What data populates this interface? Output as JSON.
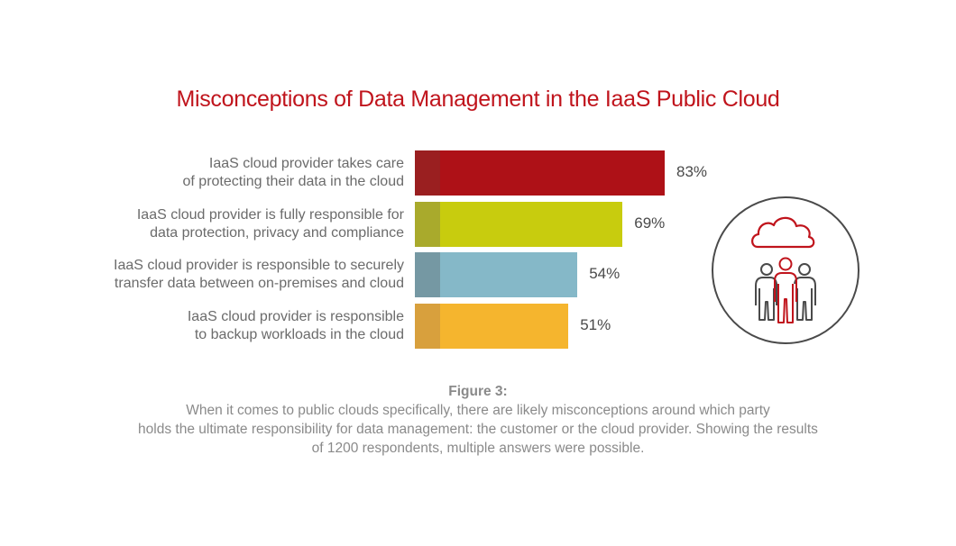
{
  "title": "Misconceptions of Data Management in the IaaS Public Cloud",
  "colors": {
    "title": "#c0141c",
    "bars": [
      "#ae1117",
      "#c8cc0e",
      "#85b8c8",
      "#f5b52e"
    ],
    "bar_accents": [
      "#9a1f20",
      "#a9aa2c",
      "#7598a3",
      "#d8a03d"
    ],
    "icon_red": "#c0141c",
    "icon_gray": "#4a4a4a"
  },
  "chart_data": {
    "type": "bar",
    "orientation": "horizontal",
    "categories": [
      [
        "IaaS cloud provider takes care",
        "of protecting their data in the cloud"
      ],
      [
        "IaaS cloud provider is fully responsible for",
        "data protection, privacy and compliance"
      ],
      [
        "IaaS cloud provider is responsible to securely",
        "transfer data between on-premises and cloud"
      ],
      [
        "IaaS cloud provider is responsible",
        "to backup workloads in the cloud"
      ]
    ],
    "values": [
      83,
      69,
      54,
      51
    ],
    "value_labels": [
      "83%",
      "69%",
      "54%",
      "51%"
    ],
    "xlim": [
      0,
      100
    ],
    "grid": false
  },
  "caption": {
    "heading": "Figure 3:",
    "lines": [
      "When it comes to public clouds specifically, there are likely misconceptions around which party",
      "holds the ultimate responsibility for data management: the customer or the cloud provider. Showing the results",
      "of 1200 respondents, multiple answers were possible."
    ]
  },
  "icon": "cloud-people-icon"
}
